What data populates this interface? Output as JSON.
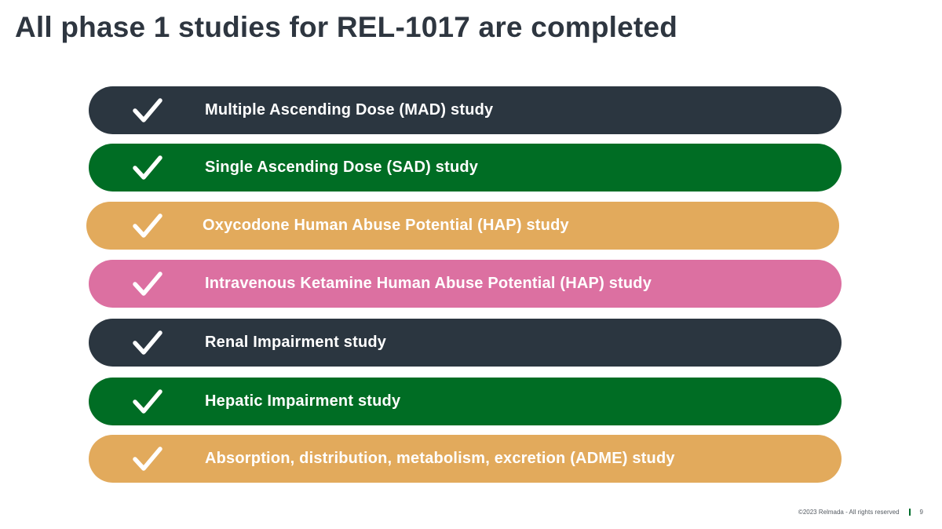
{
  "slide": {
    "title": "All phase 1 studies for REL-1017 are completed",
    "studies": [
      {
        "label": "Multiple Ascending Dose (MAD) study",
        "color": "#2b3640",
        "status": "completed"
      },
      {
        "label": "Single Ascending Dose (SAD) study",
        "color": "#006d24",
        "status": "completed"
      },
      {
        "label": "Oxycodone Human Abuse Potential (HAP) study",
        "color": "#e2aa5c",
        "status": "completed"
      },
      {
        "label": "Intravenous Ketamine Human Abuse Potential (HAP) study",
        "color": "#dc70a1",
        "status": "completed"
      },
      {
        "label": "Renal Impairment study",
        "color": "#2b3640",
        "status": "completed"
      },
      {
        "label": "Hepatic Impairment study",
        "color": "#006d24",
        "status": "completed"
      },
      {
        "label": "Absorption, distribution, metabolism, excretion (ADME) study",
        "color": "#e2aa5c",
        "status": "completed"
      }
    ],
    "icon": "check-icon",
    "footer": {
      "copyright": "©2023 Relmada - All rights reserved",
      "page_number": "9"
    }
  }
}
